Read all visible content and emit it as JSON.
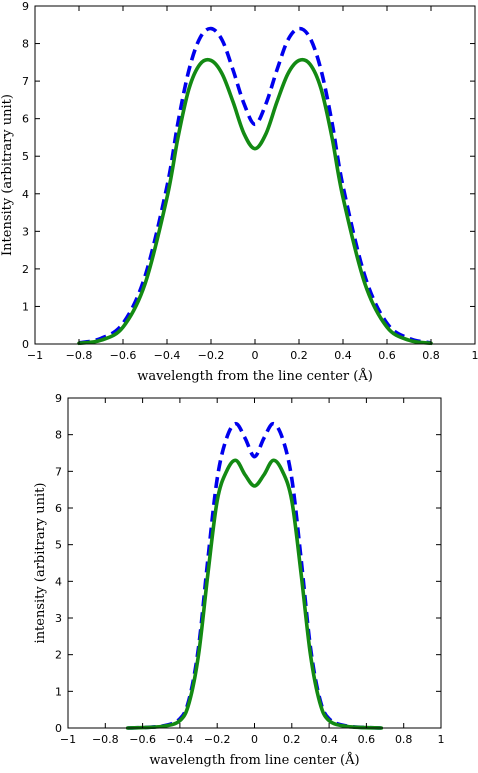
{
  "chart_data": [
    {
      "type": "line",
      "xlabel": "wavelength from the line center (Å)",
      "ylabel": "Intensity (arbitrary unit)",
      "xlim": [
        -1,
        1
      ],
      "ylim": [
        0,
        9
      ],
      "xticks": [
        -1,
        -0.8,
        -0.6,
        -0.4,
        -0.2,
        0,
        0.2,
        0.4,
        0.6,
        0.8,
        1
      ],
      "xtick_labels": [
        "−1",
        "−0.8",
        "−0.6",
        "−0.4",
        "−0.2",
        "0",
        "0.2",
        "0.4",
        "0.6",
        "0.8",
        "1"
      ],
      "yticks": [
        0,
        1,
        2,
        3,
        4,
        5,
        6,
        7,
        8,
        9
      ],
      "ytick_labels": [
        "0",
        "1",
        "2",
        "3",
        "4",
        "5",
        "6",
        "7",
        "8",
        "9"
      ],
      "grid": false,
      "series": [
        {
          "style": "dashed",
          "color": "#0000ee",
          "x": [
            -0.8,
            -0.7,
            -0.6,
            -0.5,
            -0.4,
            -0.35,
            -0.3,
            -0.25,
            -0.2,
            -0.15,
            -0.1,
            -0.05,
            0,
            0.05,
            0.1,
            0.15,
            0.2,
            0.25,
            0.3,
            0.35,
            0.4,
            0.5,
            0.6,
            0.7,
            0.8
          ],
          "y": [
            0.03,
            0.15,
            0.55,
            1.8,
            4.2,
            5.9,
            7.3,
            8.15,
            8.4,
            8.1,
            7.3,
            6.4,
            5.85,
            6.4,
            7.3,
            8.1,
            8.4,
            8.15,
            7.3,
            5.9,
            4.2,
            1.8,
            0.55,
            0.15,
            0.03
          ]
        },
        {
          "style": "solid",
          "color": "#138a13",
          "x": [
            -0.8,
            -0.7,
            -0.6,
            -0.5,
            -0.4,
            -0.35,
            -0.3,
            -0.25,
            -0.2,
            -0.15,
            -0.1,
            -0.05,
            0,
            0.05,
            0.1,
            0.15,
            0.2,
            0.25,
            0.3,
            0.35,
            0.4,
            0.5,
            0.6,
            0.7,
            0.8
          ],
          "y": [
            0.02,
            0.1,
            0.45,
            1.6,
            3.9,
            5.5,
            6.8,
            7.45,
            7.55,
            7.2,
            6.45,
            5.6,
            5.2,
            5.6,
            6.45,
            7.2,
            7.55,
            7.45,
            6.8,
            5.5,
            3.9,
            1.6,
            0.45,
            0.1,
            0.02
          ]
        }
      ]
    },
    {
      "type": "line",
      "xlabel": "wavelength from line center (Å)",
      "ylabel": "intensity (arbitrary unit)",
      "xlim": [
        -1,
        1
      ],
      "ylim": [
        0,
        9
      ],
      "xticks": [
        -1,
        -0.8,
        -0.6,
        -0.4,
        -0.2,
        0,
        0.2,
        0.4,
        0.6,
        0.8,
        1
      ],
      "xtick_labels": [
        "−1",
        "−0.8",
        "−0.6",
        "−0.4",
        "−0.2",
        "0",
        "0.2",
        "0.4",
        "0.6",
        "0.8",
        "1"
      ],
      "yticks": [
        0,
        1,
        2,
        3,
        4,
        5,
        6,
        7,
        8,
        9
      ],
      "ytick_labels": [
        "0",
        "1",
        "2",
        "3",
        "4",
        "5",
        "6",
        "7",
        "8",
        "9"
      ],
      "grid": false,
      "series": [
        {
          "style": "dashed",
          "color": "#0000ee",
          "x": [
            -0.68,
            -0.5,
            -0.4,
            -0.35,
            -0.3,
            -0.25,
            -0.2,
            -0.15,
            -0.1,
            -0.05,
            0,
            0.05,
            0.1,
            0.15,
            0.2,
            0.25,
            0.3,
            0.35,
            0.4,
            0.5,
            0.68
          ],
          "y": [
            0.0,
            0.05,
            0.25,
            0.8,
            2.2,
            4.6,
            6.8,
            7.9,
            8.3,
            7.9,
            7.4,
            7.9,
            8.3,
            7.9,
            6.8,
            4.6,
            2.2,
            0.8,
            0.25,
            0.05,
            0.0
          ]
        },
        {
          "style": "solid",
          "color": "#138a13",
          "x": [
            -0.68,
            -0.5,
            -0.4,
            -0.35,
            -0.3,
            -0.25,
            -0.2,
            -0.15,
            -0.1,
            -0.05,
            0,
            0.05,
            0.1,
            0.15,
            0.2,
            0.25,
            0.3,
            0.35,
            0.4,
            0.5,
            0.68
          ],
          "y": [
            0.0,
            0.04,
            0.2,
            0.7,
            2.0,
            4.2,
            6.2,
            7.0,
            7.3,
            6.9,
            6.6,
            6.9,
            7.3,
            7.0,
            6.2,
            4.2,
            2.0,
            0.7,
            0.2,
            0.04,
            0.0
          ]
        }
      ]
    }
  ]
}
